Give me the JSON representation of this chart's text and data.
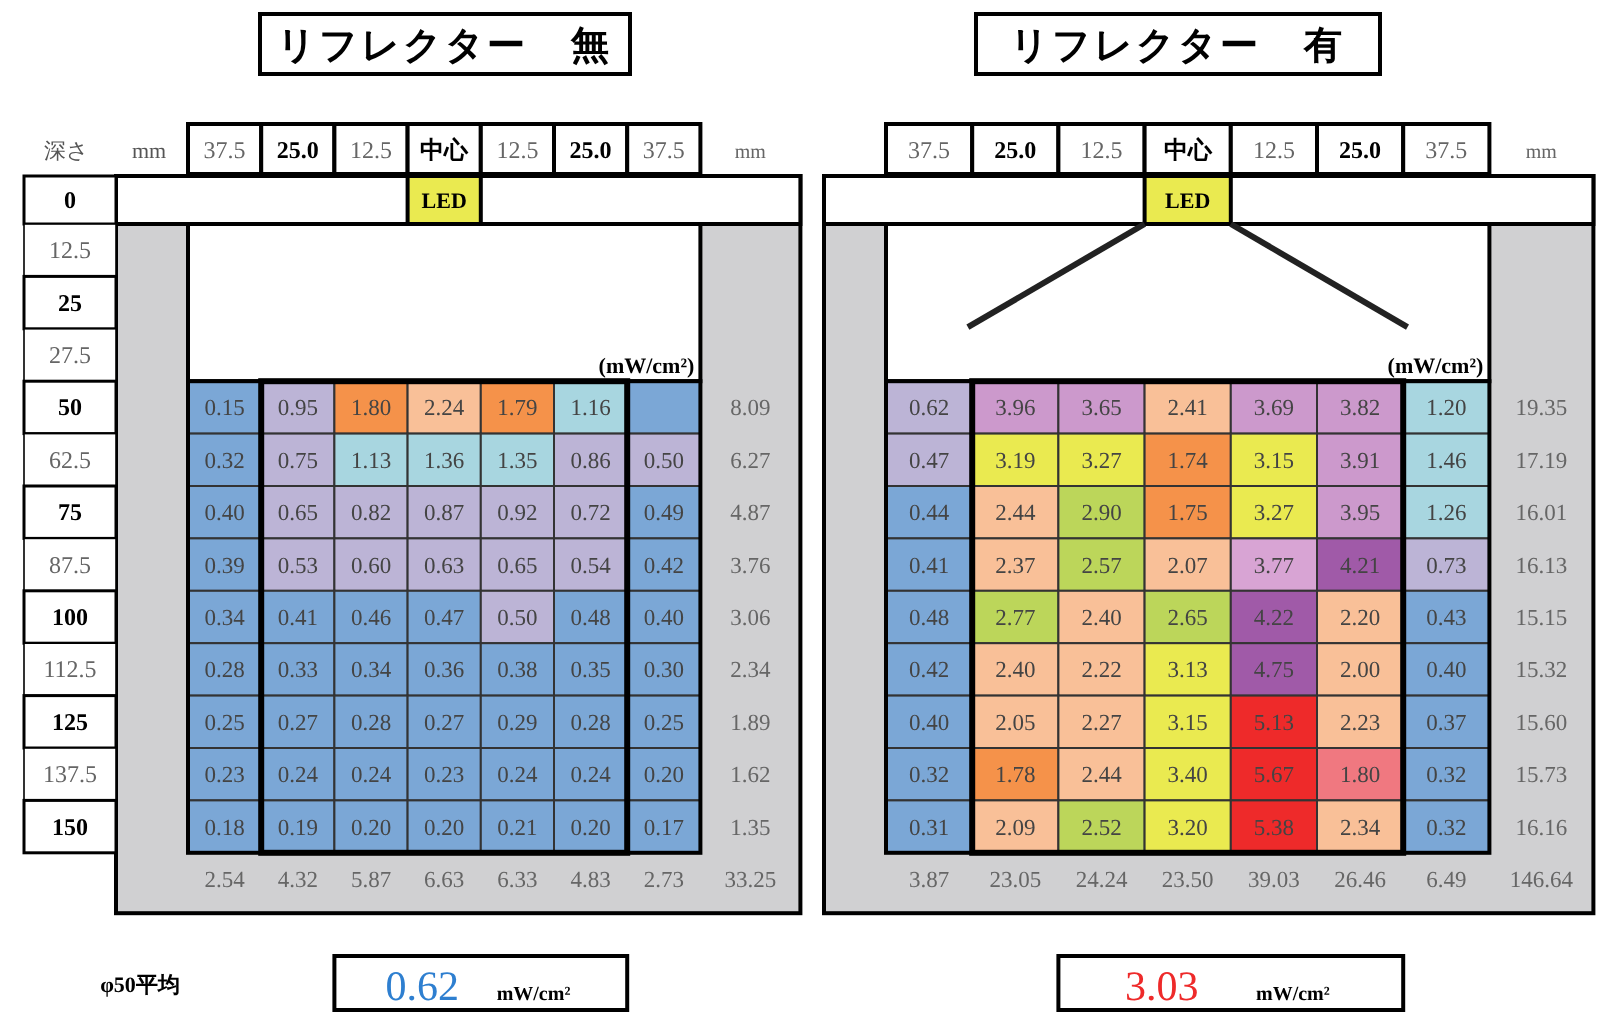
{
  "chart_data": [
    {
      "type": "heatmap",
      "title": "リフレクター　無",
      "ylabel": "深さ　　mm",
      "color": "#2e7fd0",
      "categories": [
        "37.5",
        "25.0",
        "12.5",
        "中心",
        "12.5",
        "25.0",
        "37.5",
        "mm"
      ],
      "y_categories": [
        "0",
        "12.5",
        "25",
        "27.5",
        "50",
        "62.5",
        "75",
        "87.5",
        "100",
        "112.5",
        "125",
        "137.5",
        "150",
        null
      ],
      "cells": [
        [
          null,
          null,
          null,
          null,
          null,
          null,
          null,
          null
        ],
        [
          null,
          null,
          null,
          null,
          null,
          null,
          null,
          null
        ],
        [
          null,
          null,
          null,
          null,
          null,
          null,
          null,
          null
        ],
        [
          null,
          null,
          null,
          null,
          null,
          null,
          null,
          null
        ],
        [
          0.15,
          0.95,
          1.8,
          2.24,
          1.79,
          1.16,
          null,
          8.09
        ],
        [
          0.32,
          0.75,
          1.13,
          1.36,
          1.35,
          0.86,
          0.5,
          6.27
        ],
        [
          0.4,
          0.65,
          0.82,
          0.87,
          0.92,
          0.72,
          0.49,
          4.87
        ],
        [
          0.39,
          0.53,
          0.6,
          0.63,
          0.65,
          0.54,
          0.42,
          3.76
        ],
        [
          0.34,
          0.41,
          0.46,
          0.47,
          0.5,
          0.48,
          0.4,
          3.06
        ],
        [
          0.28,
          0.33,
          0.34,
          0.36,
          0.38,
          0.35,
          0.3,
          2.34
        ],
        [
          0.25,
          0.27,
          0.28,
          0.27,
          0.29,
          0.28,
          0.25,
          1.89
        ],
        [
          0.23,
          0.24,
          0.24,
          0.23,
          0.24,
          0.24,
          0.2,
          1.62
        ],
        [
          0.18,
          0.19,
          0.2,
          0.2,
          0.21,
          0.2,
          0.17,
          1.35
        ],
        [
          2.54,
          4.32,
          5.87,
          6.63,
          6.33,
          4.83,
          2.73,
          33.25
        ]
      ],
      "cell_labels": [
        [
          null,
          null,
          null,
          null,
          null,
          null,
          null,
          null
        ],
        [
          null,
          null,
          null,
          null,
          null,
          null,
          null,
          null
        ],
        [
          null,
          null,
          null,
          null,
          null,
          null,
          null,
          null
        ],
        [
          null,
          null,
          null,
          null,
          null,
          null,
          null,
          null
        ],
        [
          "0.15",
          "0.95",
          "1.80",
          "2.24",
          "1.79",
          "1.16",
          null,
          "8.09"
        ],
        [
          "0.32",
          "0.75",
          "1.13",
          "1.36",
          "1.35",
          "0.86",
          "0.50",
          "6.27"
        ],
        [
          "0.40",
          "0.65",
          "0.82",
          "0.87",
          "0.92",
          "0.72",
          "0.49",
          "4.87"
        ],
        [
          "0.39",
          "0.53",
          "0.60",
          "0.63",
          "0.65",
          "0.54",
          "0.42",
          "3.76"
        ],
        [
          "0.34",
          "0.41",
          "0.46",
          "0.47",
          "0.50",
          "0.48",
          "0.40",
          "3.06"
        ],
        [
          "0.28",
          "0.33",
          "0.34",
          "0.36",
          "0.38",
          "0.35",
          "0.30",
          "2.34"
        ],
        [
          "0.25",
          "0.27",
          "0.28",
          "0.27",
          "0.29",
          "0.28",
          "0.25",
          "1.89"
        ],
        [
          "0.23",
          "0.24",
          "0.24",
          "0.23",
          "0.24",
          "0.24",
          "0.20",
          "1.62"
        ],
        [
          "0.18",
          "0.19",
          "0.20",
          "0.20",
          "0.21",
          "0.20",
          "0.17",
          "1.35"
        ],
        [
          "2.54",
          "4.32",
          "5.87",
          "6.63",
          "6.33",
          "4.83",
          "2.73",
          "33.25"
        ]
      ],
      "colors": [
        [
          null,
          null,
          null,
          "#eaea50",
          null,
          null,
          null,
          null
        ],
        [
          null,
          null,
          null,
          null,
          null,
          null,
          null,
          null
        ],
        [
          null,
          null,
          null,
          null,
          null,
          null,
          null,
          null
        ],
        [
          null,
          null,
          null,
          null,
          null,
          null,
          null,
          null
        ],
        [
          "#7ba7d6",
          "#bcb4d6",
          "#f5924a",
          "#f9c098",
          "#f5924a",
          "#a8d6e0",
          "#7ba7d6",
          null
        ],
        [
          "#7ba7d6",
          "#bcb4d6",
          "#a8d6e0",
          "#a8d6e0",
          "#a8d6e0",
          "#bcb4d6",
          "#bcb4d6",
          null
        ],
        [
          "#7ba7d6",
          "#bcb4d6",
          "#bcb4d6",
          "#bcb4d6",
          "#bcb4d6",
          "#bcb4d6",
          "#7ba7d6",
          null
        ],
        [
          "#7ba7d6",
          "#bcb4d6",
          "#bcb4d6",
          "#bcb4d6",
          "#bcb4d6",
          "#bcb4d6",
          "#7ba7d6",
          null
        ],
        [
          "#7ba7d6",
          "#7ba7d6",
          "#7ba7d6",
          "#7ba7d6",
          "#bcb4d6",
          "#7ba7d6",
          "#7ba7d6",
          null
        ],
        [
          "#7ba7d6",
          "#7ba7d6",
          "#7ba7d6",
          "#7ba7d6",
          "#7ba7d6",
          "#7ba7d6",
          "#7ba7d6",
          null
        ],
        [
          "#7ba7d6",
          "#7ba7d6",
          "#7ba7d6",
          "#7ba7d6",
          "#7ba7d6",
          "#7ba7d6",
          "#7ba7d6",
          null
        ],
        [
          "#7ba7d6",
          "#7ba7d6",
          "#7ba7d6",
          "#7ba7d6",
          "#7ba7d6",
          "#7ba7d6",
          "#7ba7d6",
          null
        ],
        [
          "#7ba7d6",
          "#7ba7d6",
          "#7ba7d6",
          "#7ba7d6",
          "#7ba7d6",
          "#7ba7d6",
          "#7ba7d6",
          null
        ],
        [
          null,
          null,
          null,
          null,
          null,
          null,
          null,
          null
        ]
      ],
      "annotations": [
        {
          "text": "LED",
          "x": "中心",
          "y": "0"
        },
        "(mW/cm²)",
        "φ50平均",
        "0.62",
        "mW/cm²"
      ]
    },
    {
      "type": "heatmap",
      "title": "リフレクター　有",
      "color": "#ee2a2a",
      "tick_labels": "x",
      "categories": [
        "37.5",
        "25.0",
        "12.5",
        "中心",
        "12.5",
        "25.0",
        "37.5",
        "mm"
      ],
      "y_categories": [
        "0",
        "12.5",
        "25",
        "27.5",
        "50",
        "62.5",
        "75",
        "87.5",
        "100",
        "112.5",
        "125",
        "137.5",
        "150",
        null
      ],
      "cells": [
        [
          null,
          null,
          null,
          null,
          null,
          null,
          null,
          null
        ],
        [
          null,
          null,
          null,
          null,
          null,
          null,
          null,
          null
        ],
        [
          null,
          null,
          null,
          null,
          null,
          null,
          null,
          null
        ],
        [
          null,
          null,
          null,
          null,
          null,
          null,
          null,
          null
        ],
        [
          0.62,
          3.96,
          3.65,
          2.41,
          3.69,
          3.82,
          1.2,
          19.35
        ],
        [
          0.47,
          3.19,
          3.27,
          1.74,
          3.15,
          3.91,
          1.46,
          17.19
        ],
        [
          0.44,
          2.44,
          2.9,
          1.75,
          3.27,
          3.95,
          1.26,
          16.01
        ],
        [
          0.41,
          2.37,
          2.57,
          2.07,
          3.77,
          4.21,
          0.73,
          16.13
        ],
        [
          0.48,
          2.77,
          2.4,
          2.65,
          4.22,
          2.2,
          0.43,
          15.15
        ],
        [
          0.42,
          2.4,
          2.22,
          3.13,
          4.75,
          2.0,
          0.4,
          15.32
        ],
        [
          0.4,
          2.05,
          2.27,
          3.15,
          5.13,
          2.23,
          0.37,
          15.6
        ],
        [
          0.32,
          1.78,
          2.44,
          3.4,
          5.67,
          1.8,
          0.32,
          15.73
        ],
        [
          0.31,
          2.09,
          2.52,
          3.2,
          5.38,
          2.34,
          0.32,
          16.16
        ],
        [
          3.87,
          23.05,
          24.24,
          23.5,
          39.03,
          26.46,
          6.49,
          146.64
        ]
      ],
      "cell_labels": [
        [
          null,
          null,
          null,
          null,
          null,
          null,
          null,
          null
        ],
        [
          null,
          null,
          null,
          null,
          null,
          null,
          null,
          null
        ],
        [
          null,
          null,
          null,
          null,
          null,
          null,
          null,
          null
        ],
        [
          null,
          null,
          null,
          null,
          null,
          null,
          null,
          null
        ],
        [
          "0.62",
          "3.96",
          "3.65",
          "2.41",
          "3.69",
          "3.82",
          "1.20",
          "19.35"
        ],
        [
          "0.47",
          "3.19",
          "3.27",
          "1.74",
          "3.15",
          "3.91",
          "1.46",
          "17.19"
        ],
        [
          "0.44",
          "2.44",
          "2.90",
          "1.75",
          "3.27",
          "3.95",
          "1.26",
          "16.01"
        ],
        [
          "0.41",
          "2.37",
          "2.57",
          "2.07",
          "3.77",
          "4.21",
          "0.73",
          "16.13"
        ],
        [
          "0.48",
          "2.77",
          "2.40",
          "2.65",
          "4.22",
          "2.20",
          "0.43",
          "15.15"
        ],
        [
          "0.42",
          "2.40",
          "2.22",
          "3.13",
          "4.75",
          "2.00",
          "0.40",
          "15.32"
        ],
        [
          "0.40",
          "2.05",
          "2.27",
          "3.15",
          "5.13",
          "2.23",
          "0.37",
          "15.60"
        ],
        [
          "0.32",
          "1.78",
          "2.44",
          "3.40",
          "5.67",
          "1.80",
          "0.32",
          "15.73"
        ],
        [
          "0.31",
          "2.09",
          "2.52",
          "3.20",
          "5.38",
          "2.34",
          "0.32",
          "16.16"
        ],
        [
          "3.87",
          "23.05",
          "24.24",
          "23.50",
          "39.03",
          "26.46",
          "6.49",
          "146.64"
        ]
      ],
      "colors": [
        [
          null,
          null,
          null,
          "#eaea50",
          null,
          null,
          null,
          null
        ],
        [
          null,
          null,
          null,
          null,
          null,
          null,
          null,
          null
        ],
        [
          null,
          null,
          null,
          null,
          null,
          null,
          null,
          null
        ],
        [
          null,
          null,
          null,
          null,
          null,
          null,
          null,
          null
        ],
        [
          "#bcb4d6",
          "#cc99cc",
          "#cc99cc",
          "#f9c098",
          "#cc99cc",
          "#cc99cc",
          "#a8d6e0",
          null
        ],
        [
          "#bcb4d6",
          "#eaea50",
          "#eaea50",
          "#f5924a",
          "#eaea50",
          "#cc99cc",
          "#a8d6e0",
          null
        ],
        [
          "#7ba7d6",
          "#f9c098",
          "#bcd65a",
          "#f5924a",
          "#eaea50",
          "#cc99cc",
          "#a8d6e0",
          null
        ],
        [
          "#7ba7d6",
          "#f9c098",
          "#bcd65a",
          "#f9c098",
          "#d8a4d4",
          "#a05aa8",
          "#bcb4d6",
          null
        ],
        [
          "#7ba7d6",
          "#bcd65a",
          "#f9c098",
          "#bcd65a",
          "#a05aa8",
          "#f9c098",
          "#7ba7d6",
          null
        ],
        [
          "#7ba7d6",
          "#f9c098",
          "#f9c098",
          "#eaea50",
          "#a05aa8",
          "#f9c098",
          "#7ba7d6",
          null
        ],
        [
          "#7ba7d6",
          "#f9c098",
          "#f9c098",
          "#eaea50",
          "#ee2a2a",
          "#f9c098",
          "#7ba7d6",
          null
        ],
        [
          "#7ba7d6",
          "#f5924a",
          "#f9c098",
          "#eaea50",
          "#ee2a2a",
          "#f07880",
          "#7ba7d6",
          null
        ],
        [
          "#7ba7d6",
          "#f9c098",
          "#bcd65a",
          "#eaea50",
          "#ee2a2a",
          "#f9c098",
          "#7ba7d6",
          null
        ],
        [
          null,
          null,
          null,
          null,
          null,
          null,
          null,
          null
        ]
      ],
      "annotations": [
        {
          "text": "LED",
          "x": "中心",
          "y": "0"
        },
        "(mW/cm²)",
        "3.03",
        "mW/cm²"
      ]
    }
  ]
}
